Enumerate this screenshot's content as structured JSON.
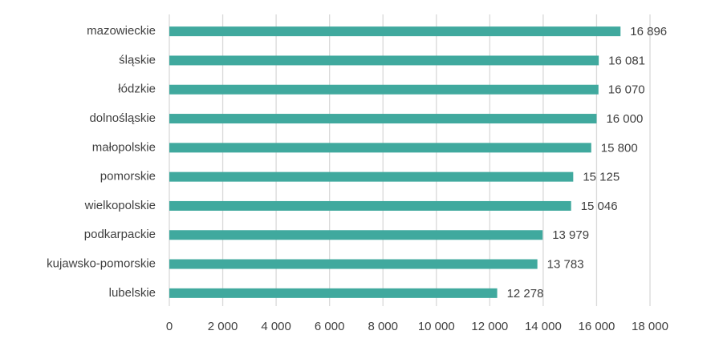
{
  "chart_data": {
    "type": "hbar",
    "categories": [
      "mazowieckie",
      "śląskie",
      "łódzkie",
      "dolnośląskie",
      "małopolskie",
      "pomorskie",
      "wielkopolskie",
      "podkarpackie",
      "kujawsko-pomorskie",
      "lubelskie"
    ],
    "values": [
      16896,
      16081,
      16070,
      16000,
      15800,
      15125,
      15046,
      13979,
      13783,
      12278
    ],
    "value_labels": [
      "16 896",
      "16 081",
      "16 070",
      "16 000",
      "15 800",
      "15 125",
      "15 046",
      "13 979",
      "13 783",
      "12 278"
    ],
    "color": "#40a99e",
    "xlim": [
      0,
      18000
    ],
    "xticks": [
      0,
      {
        "value": 2000,
        "label": "2 000"
      },
      {
        "value": 4000,
        "label": "4 000"
      },
      {
        "value": 6000,
        "label": "6 000"
      },
      {
        "value": 8000,
        "label": "8 000"
      },
      {
        "value": 10000,
        "label": "10 000"
      },
      {
        "value": 12000,
        "label": "12 000"
      },
      {
        "value": 14000,
        "label": "14 000"
      },
      {
        "value": 16000,
        "label": "16 000"
      },
      {
        "value": 18000,
        "label": "18 000"
      }
    ],
    "grid": true
  }
}
